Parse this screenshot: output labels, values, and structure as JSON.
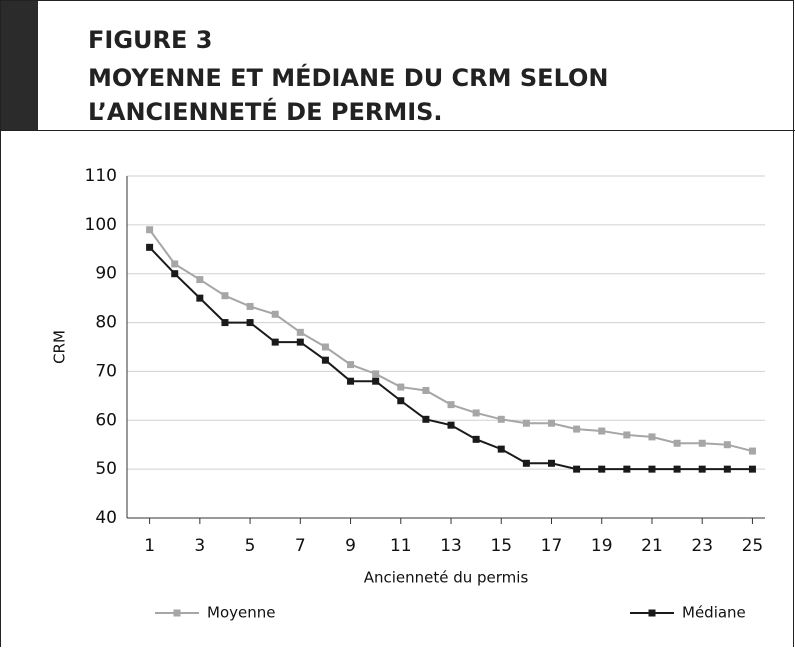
{
  "chart_data": {
    "type": "line",
    "figure": "FIGURE 3",
    "title": "MOYENNE ET MÉDIANE DU CRM SELON L’ANCIENNETÉ DE PERMIS.",
    "x_label": "Ancienneté du permis",
    "y_label": "CRM",
    "x": [
      1,
      2,
      3,
      4,
      5,
      6,
      7,
      8,
      9,
      10,
      11,
      12,
      13,
      14,
      15,
      16,
      17,
      18,
      19,
      20,
      21,
      22,
      23,
      24,
      25
    ],
    "series": [
      {
        "name": "Moyenne",
        "color": "#a6a6a6",
        "values": [
          99,
          92,
          88.8,
          85.5,
          83.3,
          81.7,
          78,
          75,
          71.4,
          69.5,
          66.8,
          66.1,
          63.2,
          61.5,
          60.2,
          59.4,
          59.4,
          58.2,
          57.8,
          57,
          56.6,
          55.3,
          55.3,
          55,
          53.7
        ]
      },
      {
        "name": "Médiane",
        "color": "#1a1a1a",
        "values": [
          95.4,
          90,
          85,
          80,
          80,
          76,
          76,
          72.3,
          68,
          68,
          64,
          60.2,
          59,
          56.1,
          54.1,
          51.2,
          51.2,
          50,
          50,
          50,
          50,
          50,
          50,
          50,
          50
        ]
      }
    ],
    "xlim": [
      0.1,
      25.5
    ],
    "xticks": [
      1,
      3,
      5,
      7,
      9,
      11,
      13,
      15,
      17,
      19,
      21,
      23,
      25
    ],
    "ylim": [
      40,
      110
    ],
    "yticks": [
      40,
      50,
      60,
      70,
      80,
      90,
      100,
      110
    ],
    "grid": true,
    "legend": "bottom"
  }
}
